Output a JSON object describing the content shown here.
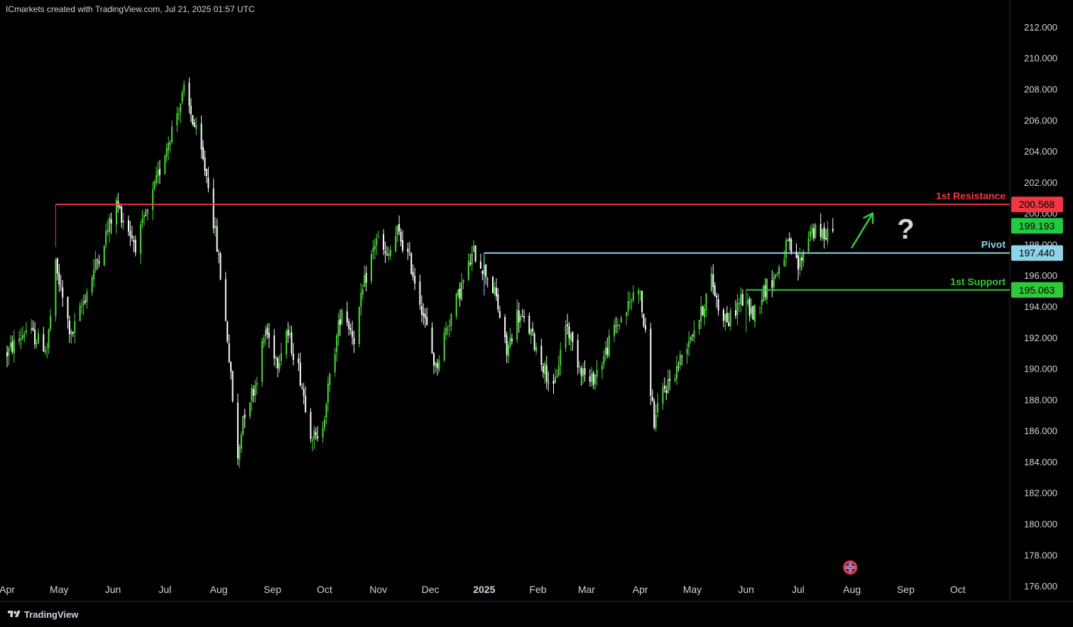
{
  "header": {
    "watermark": "ICmarkets created with TradingView.com, Jul 21, 2025 01:57 UTC"
  },
  "footer": {
    "brand": "TradingView"
  },
  "colors": {
    "background": "#000000",
    "bull": "#4cd93a",
    "bear": "#ffffff",
    "resistance": "#f23645",
    "pivot": "#8fd3e8",
    "support": "#31c93a",
    "current": "#23c941",
    "axis_text": "#d1d4dc"
  },
  "chart_data": {
    "type": "candlestick",
    "title": "",
    "xlabel": "",
    "ylabel": "",
    "ylim": [
      175,
      212.5
    ],
    "xlim": [
      "2024-04-01",
      "2025-10-31"
    ],
    "grid": false,
    "y_ticks": [
      "212.000",
      "210.000",
      "208.000",
      "206.000",
      "204.000",
      "202.000",
      "200.000",
      "198.000",
      "196.000",
      "194.000",
      "192.000",
      "190.000",
      "188.000",
      "186.000",
      "184.000",
      "182.000",
      "180.000",
      "178.000",
      "176.000"
    ],
    "x_ticks": [
      {
        "label": "Apr",
        "date": "2024-04-01",
        "bold": false
      },
      {
        "label": "May",
        "date": "2024-05-01",
        "bold": false
      },
      {
        "label": "Jun",
        "date": "2024-06-01",
        "bold": false
      },
      {
        "label": "Jul",
        "date": "2024-07-01",
        "bold": false
      },
      {
        "label": "Aug",
        "date": "2024-08-01",
        "bold": false
      },
      {
        "label": "Sep",
        "date": "2024-09-01",
        "bold": false
      },
      {
        "label": "Oct",
        "date": "2024-10-01",
        "bold": false
      },
      {
        "label": "Nov",
        "date": "2024-11-01",
        "bold": false
      },
      {
        "label": "Dec",
        "date": "2024-12-01",
        "bold": false
      },
      {
        "label": "2025",
        "date": "2025-01-01",
        "bold": true
      },
      {
        "label": "Feb",
        "date": "2025-02-01",
        "bold": false
      },
      {
        "label": "Mar",
        "date": "2025-03-01",
        "bold": false
      },
      {
        "label": "Apr",
        "date": "2025-04-01",
        "bold": false
      },
      {
        "label": "May",
        "date": "2025-05-01",
        "bold": false
      },
      {
        "label": "Jun",
        "date": "2025-06-01",
        "bold": false
      },
      {
        "label": "Jul",
        "date": "2025-07-01",
        "bold": false
      },
      {
        "label": "Aug",
        "date": "2025-08-01",
        "bold": false
      },
      {
        "label": "Sep",
        "date": "2025-09-01",
        "bold": false
      },
      {
        "label": "Oct",
        "date": "2025-10-01",
        "bold": false
      }
    ],
    "price_path": {
      "start_date": "2024-04-01",
      "end_date": "2025-07-21",
      "anchors": [
        [
          "2024-04-01",
          191.0
        ],
        [
          "2024-04-12",
          192.5
        ],
        [
          "2024-04-24",
          191.3
        ],
        [
          "2024-04-29",
          196.5
        ],
        [
          "2024-05-08",
          192.0
        ],
        [
          "2024-05-20",
          196.0
        ],
        [
          "2024-06-03",
          200.6
        ],
        [
          "2024-06-10",
          199.0
        ],
        [
          "2024-06-14",
          198.0
        ],
        [
          "2024-06-21",
          200.0
        ],
        [
          "2024-07-01",
          204.0
        ],
        [
          "2024-07-08",
          206.5
        ],
        [
          "2024-07-12",
          207.8
        ],
        [
          "2024-07-17",
          206.0
        ],
        [
          "2024-07-26",
          202.0
        ],
        [
          "2024-08-01",
          197.0
        ],
        [
          "2024-08-06",
          192.0
        ],
        [
          "2024-08-09",
          188.0
        ],
        [
          "2024-08-12",
          184.0
        ],
        [
          "2024-08-15",
          187.0
        ],
        [
          "2024-08-22",
          189.0
        ],
        [
          "2024-08-28",
          192.5
        ],
        [
          "2024-09-04",
          190.5
        ],
        [
          "2024-09-09",
          192.5
        ],
        [
          "2024-09-16",
          190.0
        ],
        [
          "2024-09-23",
          186.0
        ],
        [
          "2024-09-28",
          185.0
        ],
        [
          "2024-10-02",
          188.0
        ],
        [
          "2024-10-11",
          194.0
        ],
        [
          "2024-10-18",
          192.0
        ],
        [
          "2024-10-24",
          195.5
        ],
        [
          "2024-10-31",
          198.5
        ],
        [
          "2024-11-06",
          197.0
        ],
        [
          "2024-11-12",
          198.8
        ],
        [
          "2024-11-19",
          197.0
        ],
        [
          "2024-11-26",
          194.0
        ],
        [
          "2024-12-04",
          190.0
        ],
        [
          "2024-12-10",
          192.5
        ],
        [
          "2024-12-18",
          195.0
        ],
        [
          "2024-12-26",
          197.5
        ],
        [
          "2025-01-03",
          196.0
        ],
        [
          "2025-01-08",
          194.5
        ],
        [
          "2025-01-14",
          191.0
        ],
        [
          "2025-01-20",
          193.5
        ],
        [
          "2025-01-27",
          192.5
        ],
        [
          "2025-02-03",
          190.5
        ],
        [
          "2025-02-10",
          188.5
        ],
        [
          "2025-02-17",
          193.0
        ],
        [
          "2025-02-24",
          190.5
        ],
        [
          "2025-03-03",
          189.0
        ],
        [
          "2025-03-10",
          190.5
        ],
        [
          "2025-03-17",
          192.5
        ],
        [
          "2025-03-25",
          194.0
        ],
        [
          "2025-03-31",
          195.5
        ],
        [
          "2025-04-04",
          192.0
        ],
        [
          "2025-04-09",
          186.5
        ],
        [
          "2025-04-14",
          188.5
        ],
        [
          "2025-04-22",
          190.0
        ],
        [
          "2025-04-29",
          192.0
        ],
        [
          "2025-05-06",
          193.5
        ],
        [
          "2025-05-12",
          195.8
        ],
        [
          "2025-05-16",
          194.0
        ],
        [
          "2025-05-22",
          193.0
        ],
        [
          "2025-05-29",
          194.5
        ],
        [
          "2025-06-05",
          193.5
        ],
        [
          "2025-06-11",
          195.0
        ],
        [
          "2025-06-18",
          196.0
        ],
        [
          "2025-06-25",
          198.0
        ],
        [
          "2025-07-01",
          196.5
        ],
        [
          "2025-07-04",
          197.5
        ],
        [
          "2025-07-08",
          199.0
        ],
        [
          "2025-07-14",
          198.5
        ],
        [
          "2025-07-21",
          199.19
        ]
      ]
    },
    "levels": [
      {
        "name": "1st Resistance",
        "price": 200.568,
        "tag": "200.568",
        "start_date": "2024-04-29",
        "color": "#f23645"
      },
      {
        "name": "Pivot",
        "price": 197.44,
        "tag": "197.440",
        "start_date": "2025-01-01",
        "color": "#8fd3e8"
      },
      {
        "name": "1st Support",
        "price": 195.063,
        "tag": "195.063",
        "start_date": "2025-06-01",
        "color": "#31c93a"
      }
    ],
    "last_price": {
      "value": 199.193,
      "tag": "199.193"
    },
    "annotations": [
      {
        "type": "arrow",
        "direction": "up",
        "from": [
          "2025-08-01",
          197.8
        ],
        "to": [
          "2025-08-13",
          200.0
        ],
        "color": "#2ecc40"
      },
      {
        "type": "text",
        "text": "?",
        "at": [
          "2025-09-01",
          198.9
        ],
        "color": "#d1d4dc"
      }
    ],
    "event_icon": {
      "name": "uk-flag-icon",
      "date": "2025-07-31",
      "price": 175.0
    }
  }
}
